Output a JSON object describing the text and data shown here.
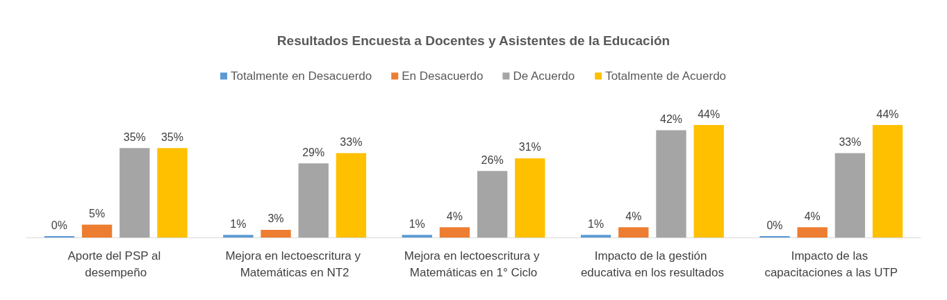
{
  "chart_data": {
    "type": "bar",
    "title": "Resultados Encuesta a Docentes y Asistentes de la Educación",
    "categories": [
      "Aporte del PSP al desempeño",
      "Mejora en lectoescritura y Matemáticas en NT2",
      "Mejora en lectoescritura y Matemáticas en 1° Ciclo",
      "Impacto de la gestión educativa en los resultados",
      "Impacto de las capacitaciones a las UTP"
    ],
    "series": [
      {
        "name": "Totalmente en Desacuerdo",
        "color": "#5b9bd5",
        "values": [
          0,
          1,
          1,
          1,
          0
        ],
        "value_labels": [
          "0%",
          "1%",
          "1%",
          "1%",
          "0%"
        ]
      },
      {
        "name": "En Desacuerdo",
        "color": "#ed7d31",
        "values": [
          5,
          3,
          4,
          4,
          4
        ],
        "value_labels": [
          "5%",
          "3%",
          "4%",
          "4%",
          "4%"
        ]
      },
      {
        "name": "De Acuerdo",
        "color": "#a5a5a5",
        "values": [
          35,
          29,
          26,
          42,
          33
        ],
        "value_labels": [
          "35%",
          "29%",
          "26%",
          "42%",
          "33%"
        ]
      },
      {
        "name": "Totalmente de Acuerdo",
        "color": "#ffc000",
        "values": [
          35,
          33,
          31,
          44,
          44
        ],
        "value_labels": [
          "35%",
          "33%",
          "31%",
          "44%",
          "44%"
        ]
      }
    ],
    "legend": "top"
  }
}
